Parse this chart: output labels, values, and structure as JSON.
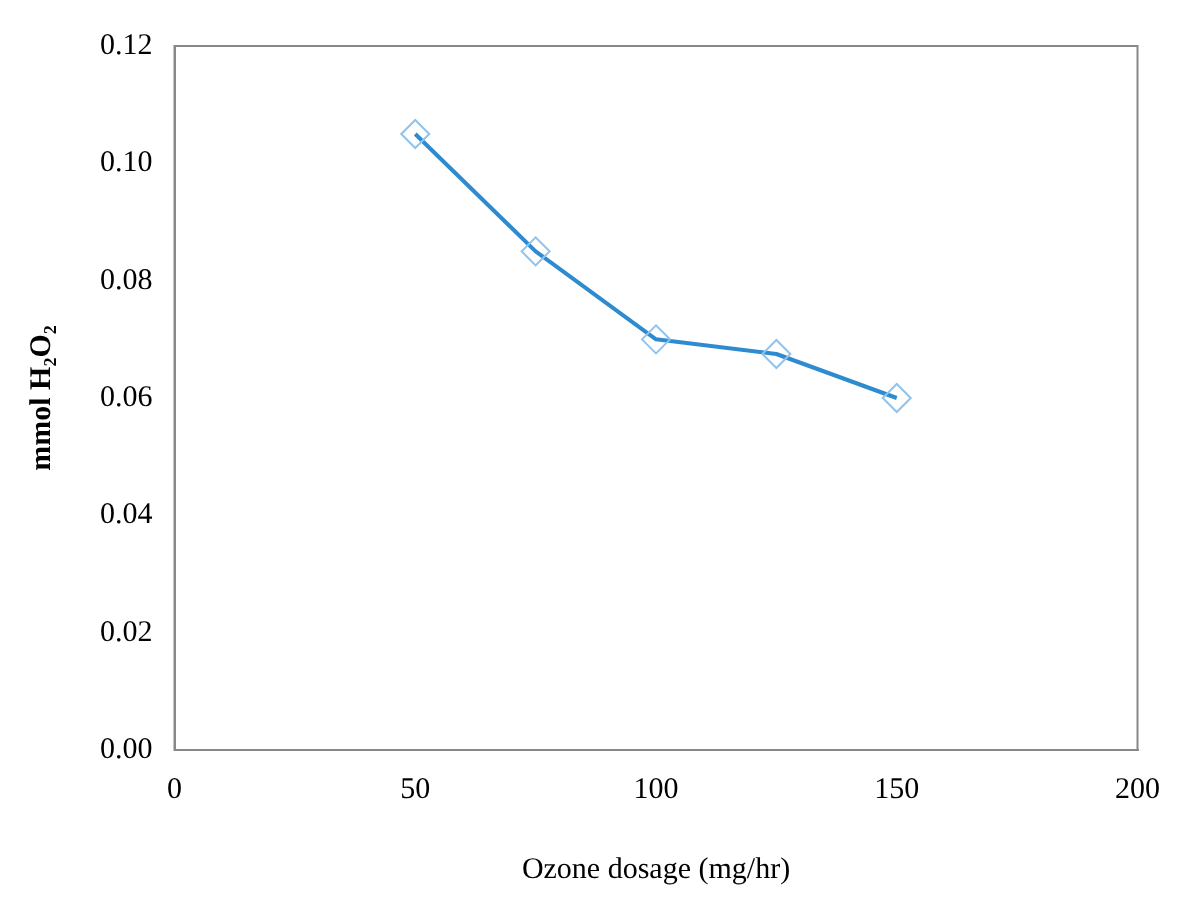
{
  "chart_data": {
    "type": "line",
    "xlabel": "Ozone dosage (mg/hr)",
    "ylabel": "mmol H₂O₂",
    "x": [
      50,
      75,
      100,
      125,
      150
    ],
    "series": [
      {
        "color": "#2e8bd0",
        "values": [
          0.105,
          0.085,
          0.07,
          0.0675,
          0.06
        ]
      }
    ],
    "xlim": [
      0,
      200
    ],
    "xticks": [
      0,
      50,
      100,
      150,
      200
    ],
    "ylim": [
      0,
      0.12
    ],
    "yticks": [
      {
        "value": 0,
        "label": "0.00"
      },
      {
        "value": 0.02,
        "label": "0.02"
      },
      {
        "value": 0.04,
        "label": "0.04"
      },
      {
        "value": 0.06,
        "label": "0.06"
      },
      {
        "value": 0.08,
        "label": "0.08"
      },
      {
        "value": 0.1,
        "label": "0.10"
      },
      {
        "value": 0.12,
        "label": "0.12"
      }
    ],
    "marker": "diamond",
    "line_style": "solid",
    "grid": false,
    "legend": false
  }
}
